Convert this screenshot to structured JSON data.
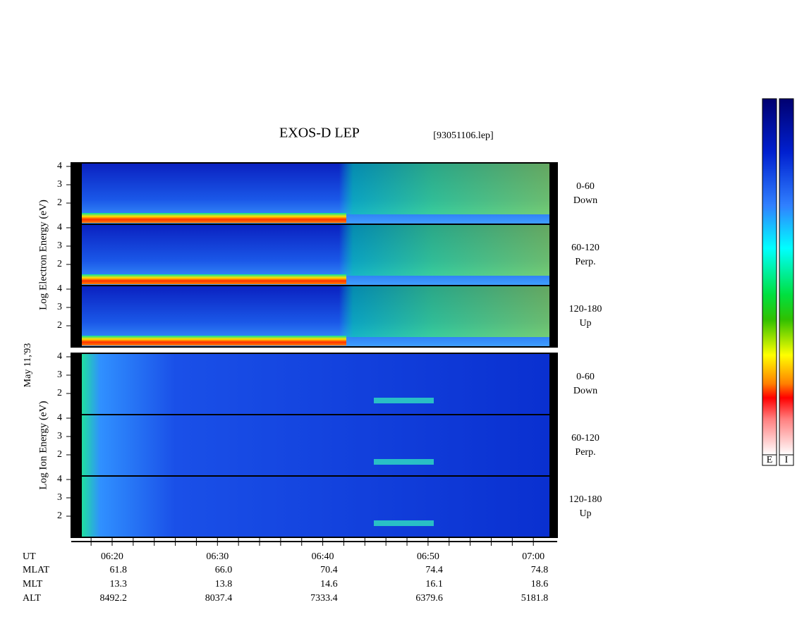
{
  "header": {
    "title": "EXOS-D LEP",
    "file": "[93051106.lep]"
  },
  "date": "May 11,'93",
  "energy_ticks": [
    "4",
    "3",
    "2"
  ],
  "electron": {
    "axis_label": "Log Electron Energy (eV)",
    "panels": [
      {
        "angle": "0-60",
        "direction": "Down"
      },
      {
        "angle": "60-120",
        "direction": "Perp."
      },
      {
        "angle": "120-180",
        "direction": "Up"
      }
    ]
  },
  "ion": {
    "axis_label": "Log Ion Energy (eV)",
    "panels": [
      {
        "angle": "0-60",
        "direction": "Down"
      },
      {
        "angle": "60-120",
        "direction": "Perp."
      },
      {
        "angle": "120-180",
        "direction": "Up"
      }
    ]
  },
  "time_axis": {
    "label": "UT",
    "ticks": [
      "06:20",
      "06:30",
      "06:40",
      "06:50",
      "07:00"
    ]
  },
  "ephemeris": [
    {
      "label": "MLAT",
      "values": [
        "61.8",
        "66.0",
        "70.4",
        "74.4",
        "74.8"
      ]
    },
    {
      "label": "MLT",
      "values": [
        "13.3",
        "13.8",
        "14.6",
        "16.1",
        "18.6"
      ]
    },
    {
      "label": "ALT",
      "values": [
        "8492.2",
        "8037.4",
        "7333.4",
        "6379.6",
        "5181.8"
      ]
    }
  ],
  "colorbar": {
    "labels": [
      "E",
      "I"
    ]
  }
}
